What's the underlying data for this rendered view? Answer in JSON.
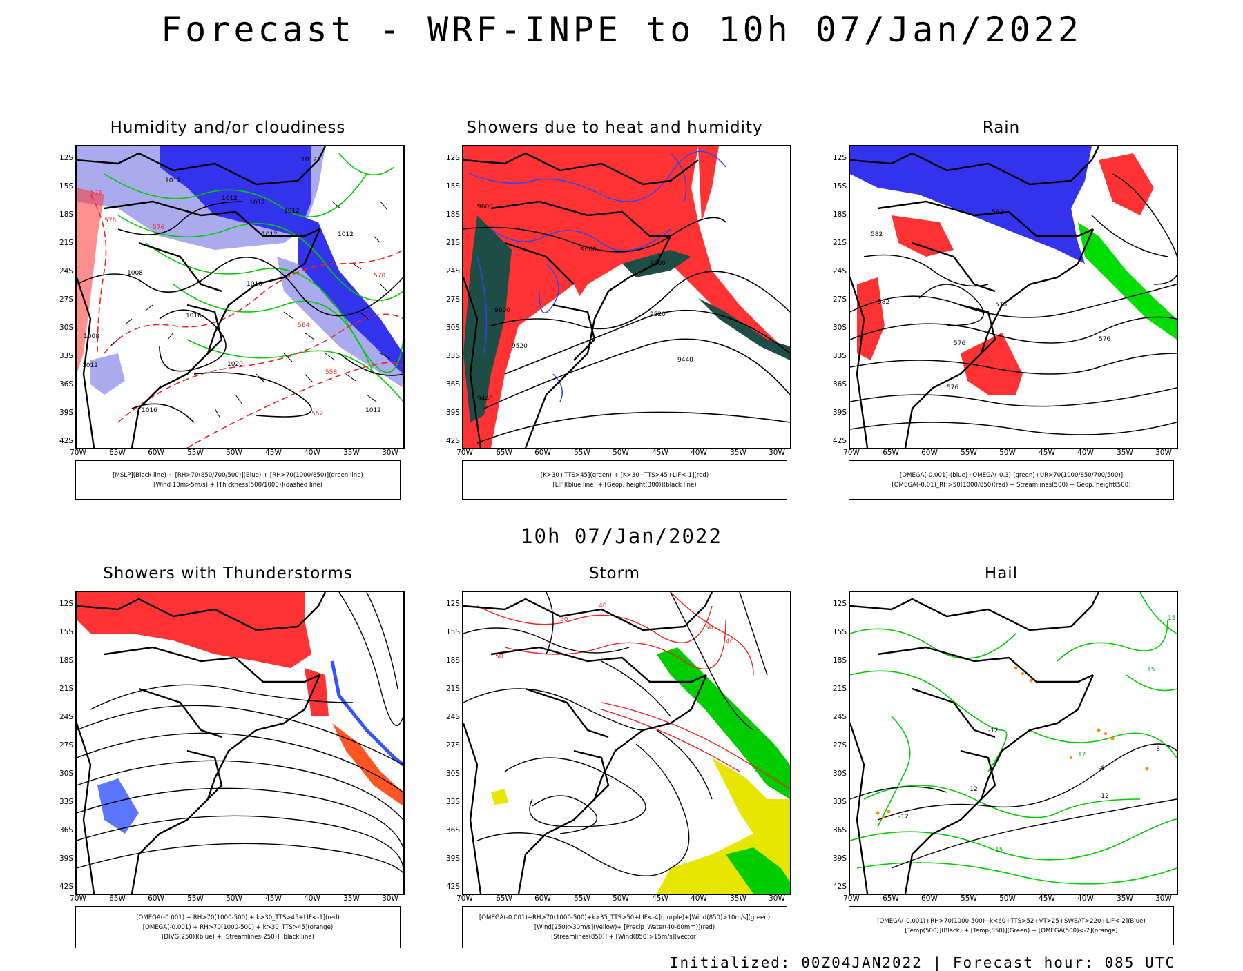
{
  "header": {
    "title": "Forecast - WRF-INPE to 10h 07/Jan/2022"
  },
  "middle_title": "10h 07/Jan/2022",
  "footer": {
    "text": "Initialized: 00Z04JAN2022 | Forecast hour: 085 UTC"
  },
  "axes": {
    "lat_labels": [
      "12S",
      "15S",
      "18S",
      "21S",
      "24S",
      "27S",
      "30S",
      "33S",
      "36S",
      "39S",
      "42S"
    ],
    "lon_labels": [
      "70W",
      "65W",
      "60W",
      "55W",
      "50W",
      "45W",
      "40W",
      "35W",
      "30W"
    ]
  },
  "colors": {
    "blue_dark": "#3333ee",
    "blue_light": "#aaaaee",
    "red": "#ff3333",
    "green": "#00dd00",
    "dark_green": "#1e4d46",
    "yellow": "#e6e600",
    "orange": "#ff8800"
  },
  "panels": [
    {
      "title": "Humidity and/or cloudiness",
      "legend": [
        "[MSLP](Black line) + [RH>70(850/700/500)](Blue) + [RH>70(1000/850)](green line)",
        "[Wind 10m>5m/s] + [Thickness(500/1000)](dashed line)"
      ],
      "contour_labels": [
        "1012",
        "1012",
        "1012",
        "1012",
        "1008",
        "1012",
        "1012",
        "1016",
        "1016",
        "1020",
        "1016",
        "1012",
        "1012",
        "1008",
        "1012",
        "576",
        "576",
        "576",
        "570",
        "564",
        "558",
        "552"
      ]
    },
    {
      "title": "Showers due to heat and humidity",
      "legend": [
        "[K>30+TTS>45](green) + [K>30+TTS>45+LIF<-1](red)",
        "[LIF](blue line) + [Geop. height(300)](black line)"
      ],
      "contour_labels": [
        "9600",
        "9600",
        "9600",
        "9600",
        "9520",
        "9520",
        "9440",
        "9440"
      ]
    },
    {
      "title": "Rain",
      "legend": [
        "[OMEGA(-0.001)-(blue)+OMEGA(-0.3)-(green)+UR>70(1000/850/700/500)]",
        "[OMEGA(-0.01)_RH>50(1000/850)(red) + Streamlines(500) + Geop. height(500)"
      ],
      "contour_labels": [
        "582",
        "582",
        "582",
        "576",
        "576",
        "576",
        "576"
      ]
    },
    {
      "title": "Showers with Thunderstorms",
      "legend": [
        "[OMEGA(-0.001) + RH>70(1000-500) + k>30_TTS>45+LIF<-1](red)",
        "[OMEGA(-0.001) + RH>70(1000-500) + k>30_TTS>45](orange)",
        "[DIVG(250)](blue) + [Streamlines(250)] (black line)"
      ],
      "contour_labels": []
    },
    {
      "title": "Storm",
      "legend": [
        "[OMEGA(-0.001)+RH>70(1000-500)+k>35_TTS>50+LIF<-4](purple)+[Wind(850)>10m/s](green)",
        "[Wind(250)>30m/s](yellow)+ [Precip_Water(40-60mm)](red)",
        "[Streamlines(850)] + [Wind(850)>15m/s](vector)"
      ],
      "contour_labels": [
        "50",
        "40",
        "50",
        "40",
        "50"
      ]
    },
    {
      "title": "Hail",
      "legend": [
        "[OMEGA(-0.001)+RH>70(1000-500)+k<60+TTS>52+VT>25+SWEAT>220+LIF<-2](Blue)",
        "[Temp(500)](Black) + [Temp(850)](Green) + [OMEGA(500)<-2](orange)"
      ],
      "contour_labels": [
        "-12",
        "-12",
        "-12",
        "-8",
        "-8",
        "-12",
        "15",
        "15",
        "15",
        "12",
        "12"
      ]
    }
  ]
}
